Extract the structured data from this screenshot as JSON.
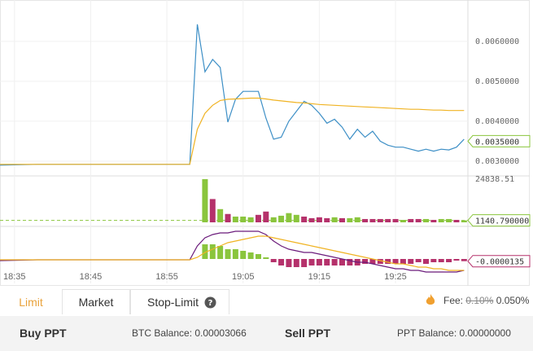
{
  "chart_data": [
    {
      "type": "line",
      "x": [
        33,
        38,
        58,
        59,
        60,
        61,
        62,
        63,
        64,
        65,
        66,
        67,
        68,
        69,
        70,
        71,
        72,
        73,
        74,
        75,
        76,
        77,
        78,
        79,
        80,
        81,
        82,
        83,
        84,
        85,
        86,
        87,
        88,
        89,
        90,
        91,
        92,
        93,
        94
      ],
      "xlim": [
        33.1,
        94.5
      ],
      "series": [
        {
          "color": "#3d8fc6",
          "values": [
            0.0029,
            0.00292,
            0.00292,
            0.00643,
            0.00524,
            0.00555,
            0.00535,
            0.00398,
            0.00455,
            0.00475,
            0.00475,
            0.00475,
            0.00408,
            0.00355,
            0.0036,
            0.004,
            0.00425,
            0.0045,
            0.0044,
            0.0042,
            0.00395,
            0.00405,
            0.00385,
            0.00355,
            0.0038,
            0.0036,
            0.00375,
            0.0035,
            0.0034,
            0.00335,
            0.00335,
            0.0033,
            0.00325,
            0.0033,
            0.00325,
            0.0033,
            0.00328,
            0.00335,
            0.00355
          ]
        },
        {
          "color": "#f0b323",
          "values": [
            0.00292,
            0.00292,
            0.00292,
            0.0038,
            0.0042,
            0.0044,
            0.00452,
            0.00455,
            0.00456,
            0.00457,
            0.00458,
            0.00458,
            0.00456,
            0.00453,
            0.00451,
            0.00449,
            0.00447,
            0.00446,
            0.00444,
            0.00442,
            0.00441,
            0.0044,
            0.00439,
            0.00438,
            0.00437,
            0.00436,
            0.00435,
            0.00434,
            0.00433,
            0.00432,
            0.00431,
            0.0043,
            0.0043,
            0.00429,
            0.00428,
            0.00428,
            0.00427,
            0.00427,
            0.00427
          ]
        }
      ],
      "ylim": [
        0.00265,
        0.00704
      ],
      "yticks": [
        {
          "value": 0.003,
          "label": "0.0030000"
        },
        {
          "value": 0.004,
          "label": "0.0040000"
        },
        {
          "value": 0.005,
          "label": "0.0050000"
        },
        {
          "value": 0.006,
          "label": "0.0060000"
        }
      ],
      "price_tag": {
        "value": 0.0035,
        "label": "0.0035000"
      },
      "grid": true
    },
    {
      "type": "bar",
      "x": [
        60,
        61,
        62,
        63,
        64,
        65,
        66,
        67,
        68,
        69,
        70,
        71,
        72,
        73,
        74,
        75,
        76,
        77,
        78,
        79,
        80,
        81,
        82,
        83,
        84,
        85,
        86,
        87,
        88,
        89,
        90,
        91,
        92,
        93,
        94
      ],
      "xlim": [
        33.1,
        94.5
      ],
      "values": [
        24838.51,
        13400,
        7600,
        4800,
        3300,
        3300,
        2900,
        4300,
        6200,
        2900,
        3800,
        5300,
        4300,
        3300,
        2400,
        2900,
        2400,
        2900,
        2400,
        2400,
        2900,
        1900,
        1900,
        1900,
        1900,
        1900,
        1400,
        1900,
        1900,
        1900,
        1400,
        1900,
        1900,
        1400,
        1140.79
      ],
      "colors": [
        "#8ac53d",
        "#b5316b",
        "#8ac53d",
        "#b5316b",
        "#8ac53d",
        "#8ac53d",
        "#8ac53d",
        "#b5316b",
        "#b5316b",
        "#8ac53d",
        "#8ac53d",
        "#8ac53d",
        "#8ac53d",
        "#b5316b",
        "#b5316b",
        "#b5316b",
        "#b5316b",
        "#8ac53d",
        "#b5316b",
        "#8ac53d",
        "#8ac53d",
        "#b5316b",
        "#b5316b",
        "#b5316b",
        "#b5316b",
        "#b5316b",
        "#8ac53d",
        "#b5316b",
        "#b5316b",
        "#8ac53d",
        "#b5316b",
        "#8ac53d",
        "#8ac53d",
        "#b5316b",
        "#8ac53d"
      ],
      "ylim": [
        0,
        24838.51
      ],
      "yticks": [
        24838.51
      ],
      "volume_tag": {
        "value": 1140.79,
        "label": "1140.790000"
      }
    },
    {
      "type": "macd",
      "x": [
        33,
        38,
        58,
        59,
        60,
        61,
        62,
        63,
        64,
        65,
        66,
        67,
        68,
        69,
        70,
        71,
        72,
        73,
        74,
        75,
        76,
        77,
        78,
        79,
        80,
        81,
        82,
        83,
        84,
        85,
        86,
        87,
        88,
        89,
        90,
        91,
        92,
        93,
        94
      ],
      "xlim": [
        33.1,
        94.5
      ],
      "series": [
        {
          "color": "#6b1b7b",
          "values": [
            -1e-05,
            -5e-06,
            -5e-06,
            8e-05,
            0.00013,
            0.00015,
            0.00016,
            0.00016,
            0.00017,
            0.00017,
            0.00017,
            0.00017,
            0.00015,
            0.00011,
            8e-05,
            6e-05,
            5e-05,
            4e-05,
            4e-05,
            3e-05,
            2e-05,
            1e-05,
            0,
            -1e-05,
            -2e-05,
            -2e-05,
            -3e-05,
            -4e-05,
            -5e-05,
            -6e-05,
            -6e-05,
            -7e-05,
            -7e-05,
            -8e-05,
            -8e-05,
            -8e-05,
            -8e-05,
            -8e-05,
            -7e-05
          ]
        },
        {
          "color": "#f0b323",
          "values": [
            -5e-06,
            -5e-06,
            -5e-06,
            1e-05,
            4e-05,
            6e-05,
            8e-05,
            0.0001,
            0.00011,
            0.00012,
            0.00013,
            0.00014,
            0.00014,
            0.00013,
            0.00012,
            0.00011,
            0.0001,
            9e-05,
            8e-05,
            7e-05,
            6e-05,
            5e-05,
            4e-05,
            3e-05,
            2e-05,
            1e-05,
            0,
            -1e-05,
            -2e-05,
            -3e-05,
            -3e-05,
            -4e-05,
            -5e-05,
            -5e-05,
            -6e-05,
            -6e-05,
            -7e-05,
            -7e-05,
            -7e-05
          ]
        }
      ],
      "histogram": {
        "x": [
          60,
          61,
          62,
          63,
          64,
          65,
          66,
          67,
          68,
          69,
          70,
          71,
          72,
          73,
          74,
          75,
          76,
          77,
          78,
          79,
          80,
          81,
          82,
          83,
          84,
          85,
          86,
          87,
          88,
          89,
          90,
          91,
          92,
          93,
          94
        ],
        "values": [
          9e-05,
          9e-05,
          8e-05,
          6e-05,
          6e-05,
          5e-05,
          4e-05,
          3e-05,
          1e-05,
          -2e-05,
          -4e-05,
          -5e-05,
          -5e-05,
          -5e-05,
          -4e-05,
          -4e-05,
          -4e-05,
          -4e-05,
          -4e-05,
          -4e-05,
          -4e-05,
          -3e-05,
          -3e-05,
          -3e-05,
          -3e-05,
          -3e-05,
          -3e-05,
          -3e-05,
          -2e-05,
          -3e-05,
          -2e-05,
          -2e-05,
          -2e-05,
          -1e-05,
          -1.35e-05
        ],
        "up_color": "#8ac53d",
        "down_color": "#b5316b"
      },
      "ylim": [
        -0.00015,
        0.00019
      ],
      "macd_tag": {
        "value": -1.35e-05,
        "label": "-0.0000135"
      },
      "xticks": [
        {
          "value": 35,
          "label": "18:35"
        },
        {
          "value": 45,
          "label": "18:45"
        },
        {
          "value": 55,
          "label": "18:55"
        },
        {
          "value": 65,
          "label": "19:05"
        },
        {
          "value": 75,
          "label": "19:15"
        },
        {
          "value": 85,
          "label": "19:25"
        }
      ]
    }
  ],
  "order_form": {
    "tabs": [
      "Limit",
      "Market",
      "Stop-Limit"
    ],
    "fee_label": "Fee:",
    "fee_old": "0.10%",
    "fee": "0.050%",
    "buy_title": "Buy PPT",
    "btc_balance": "BTC Balance: 0.00003066",
    "sell_title": "Sell PPT",
    "ppt_balance": "PPT Balance: 0.00000000"
  }
}
